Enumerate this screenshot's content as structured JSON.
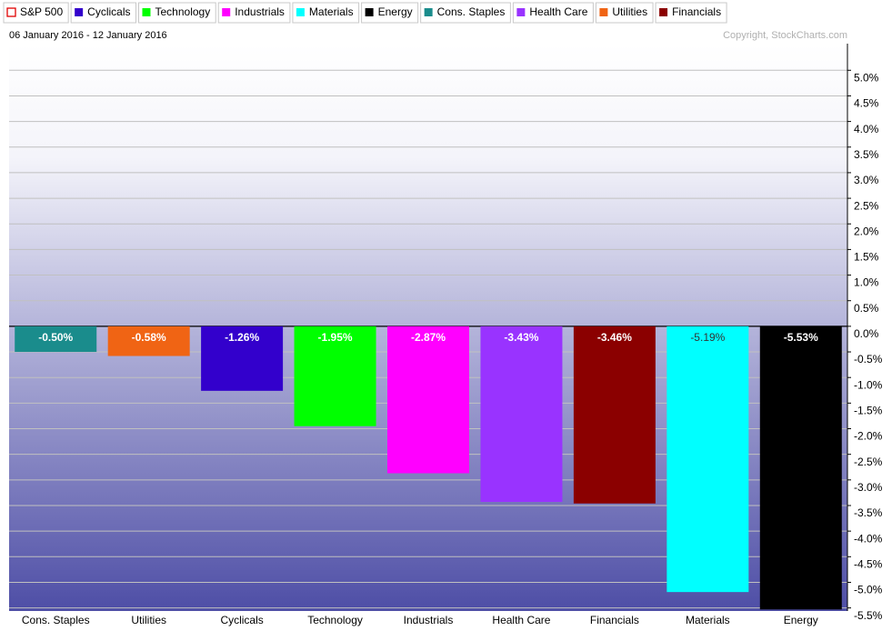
{
  "chart_data": {
    "type": "bar",
    "legend": [
      {
        "name": "S&P 500",
        "color": "#e00000",
        "marker": "hollow"
      },
      {
        "name": "Cyclicals",
        "color": "#3300cc"
      },
      {
        "name": "Technology",
        "color": "#00ff00"
      },
      {
        "name": "Industrials",
        "color": "#ff00ff"
      },
      {
        "name": "Materials",
        "color": "#00ffff"
      },
      {
        "name": "Energy",
        "color": "#000000"
      },
      {
        "name": "Cons. Staples",
        "color": "#1a8c8c"
      },
      {
        "name": "Health Care",
        "color": "#9933ff"
      },
      {
        "name": "Utilities",
        "color": "#f06414"
      },
      {
        "name": "Financials",
        "color": "#8b0000"
      }
    ],
    "subtitle": "06 January 2016 - 12 January 2016",
    "copyright": "Copyright, StockCharts.com",
    "categories": [
      "Cons. Staples",
      "Utilities",
      "Cyclicals",
      "Technology",
      "Industrials",
      "Health Care",
      "Financials",
      "Materials",
      "Energy"
    ],
    "values": [
      -0.5,
      -0.58,
      -1.26,
      -1.95,
      -2.87,
      -3.43,
      -3.46,
      -5.19,
      -5.53
    ],
    "value_labels": [
      "-0.50%",
      "-0.58%",
      "-1.26%",
      "-1.95%",
      "-2.87%",
      "-3.43%",
      "-3.46%",
      "-5.19%",
      "-5.53%"
    ],
    "colors": [
      "#1a8c8c",
      "#f06414",
      "#3300cc",
      "#00ff00",
      "#ff00ff",
      "#9933ff",
      "#8b0000",
      "#00ffff",
      "#000000"
    ],
    "ylim": [
      -5.56,
      5.52
    ],
    "yticks": [
      {
        "value": 5.0,
        "label": "5.0%"
      },
      {
        "value": 4.5,
        "label": "4.5%"
      },
      {
        "value": 4.0,
        "label": "4.0%"
      },
      {
        "value": 3.5,
        "label": "3.5%"
      },
      {
        "value": 3.0,
        "label": "3.0%"
      },
      {
        "value": 2.5,
        "label": "2.5%"
      },
      {
        "value": 2.0,
        "label": "2.0%"
      },
      {
        "value": 1.5,
        "label": "1.5%"
      },
      {
        "value": 1.0,
        "label": "1.0%"
      },
      {
        "value": 0.5,
        "label": "0.5%"
      },
      {
        "value": 0.0,
        "label": "0.0%"
      },
      {
        "value": -0.5,
        "label": "-0.5%"
      },
      {
        "value": -1.0,
        "label": "-1.0%"
      },
      {
        "value": -1.5,
        "label": "-1.5%"
      },
      {
        "value": -2.0,
        "label": "-2.0%"
      },
      {
        "value": -2.5,
        "label": "-2.5%"
      },
      {
        "value": -3.0,
        "label": "-3.0%"
      },
      {
        "value": -3.5,
        "label": "-3.5%"
      },
      {
        "value": -4.0,
        "label": "-4.0%"
      },
      {
        "value": -4.5,
        "label": "-4.5%"
      },
      {
        "value": -5.0,
        "label": "-5.0%"
      },
      {
        "value": -5.5,
        "label": "-5.5%"
      }
    ],
    "grid": true
  }
}
